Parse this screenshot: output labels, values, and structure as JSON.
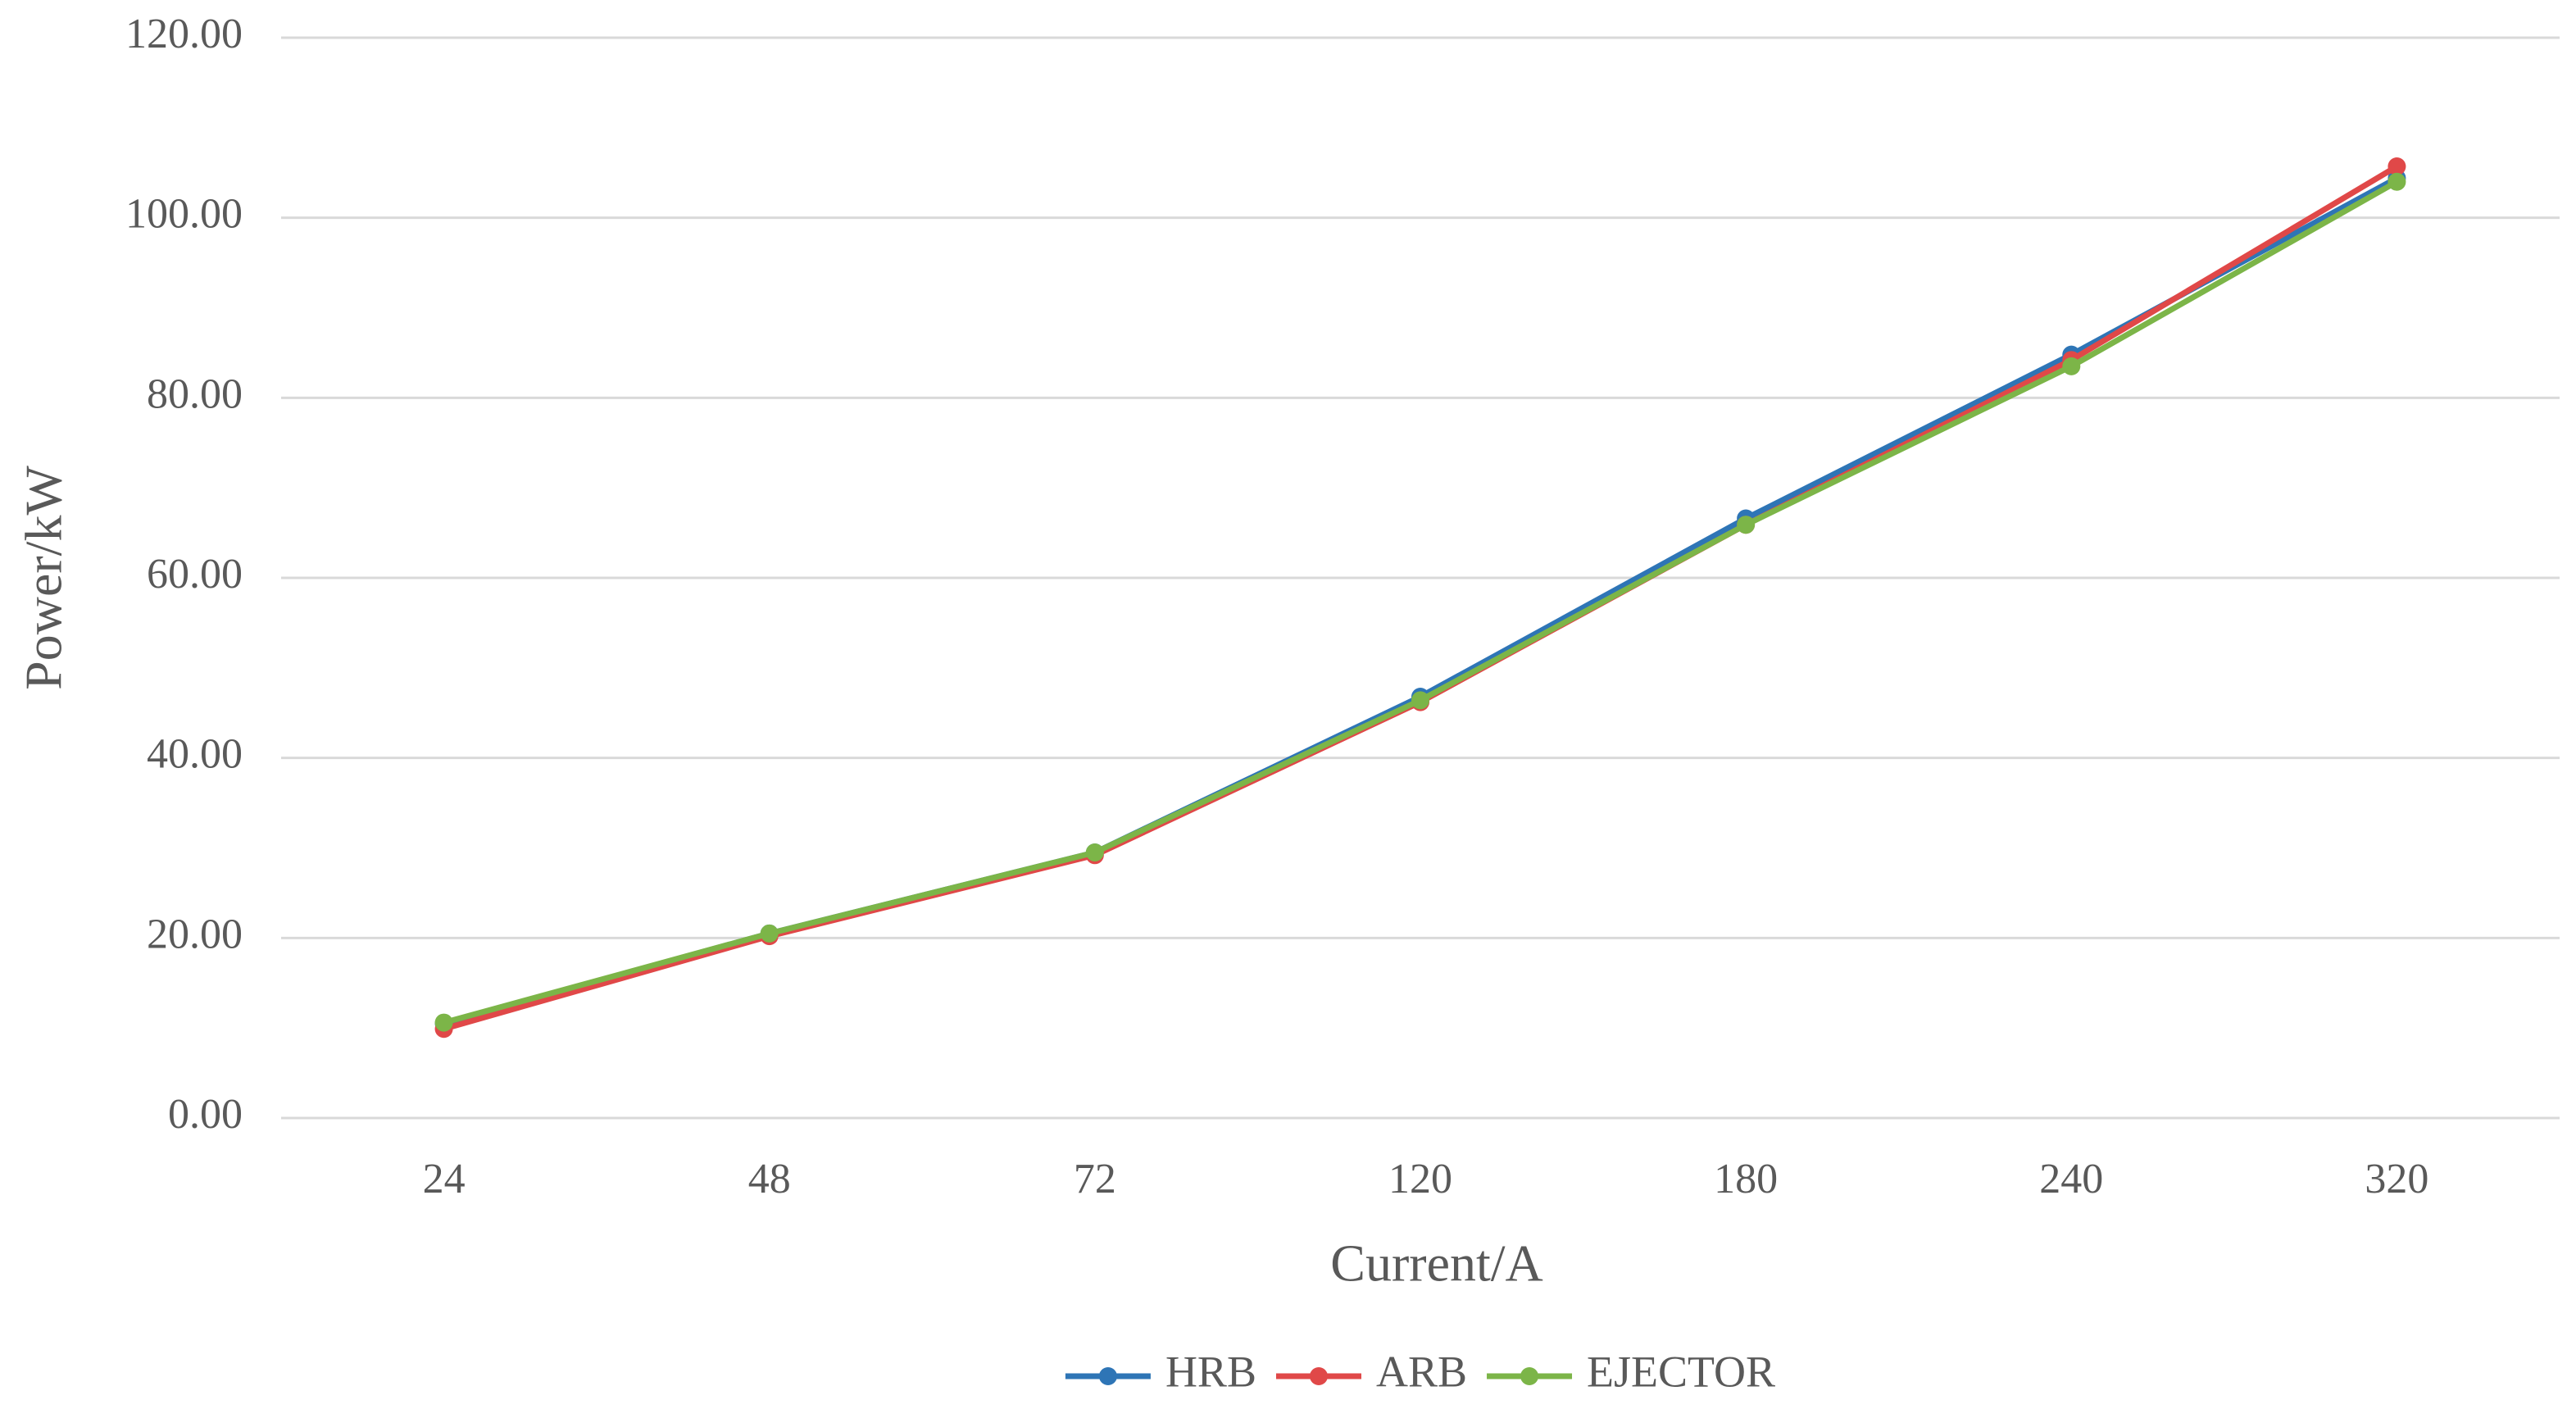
{
  "chart_data": {
    "type": "line",
    "x_label": "Current/A",
    "y_label": "Power/kW",
    "categories": [
      "24",
      "48",
      "72",
      "120",
      "180",
      "240",
      "320"
    ],
    "series": [
      {
        "name": "HRB",
        "color": "#2e75b6",
        "values": [
          10.5,
          20.5,
          29.5,
          46.8,
          66.6,
          84.8,
          104.4
        ]
      },
      {
        "name": "ARB",
        "color": "#e04848",
        "values": [
          9.9,
          20.2,
          29.2,
          46.2,
          65.9,
          84.2,
          105.7
        ]
      },
      {
        "name": "EJECTOR",
        "color": "#7cb548",
        "values": [
          10.6,
          20.5,
          29.5,
          46.4,
          65.9,
          83.5,
          104.0
        ]
      }
    ],
    "ylim": [
      0,
      120
    ],
    "yticks": [
      {
        "value": 0,
        "label": "0.00"
      },
      {
        "value": 20,
        "label": "20.00"
      },
      {
        "value": 40,
        "label": "40.00"
      },
      {
        "value": 60,
        "label": "60.00"
      },
      {
        "value": 80,
        "label": "80.00"
      },
      {
        "value": 100,
        "label": "100.00"
      },
      {
        "value": 120,
        "label": "120.00"
      }
    ],
    "grid": true,
    "legend": "bottom"
  }
}
